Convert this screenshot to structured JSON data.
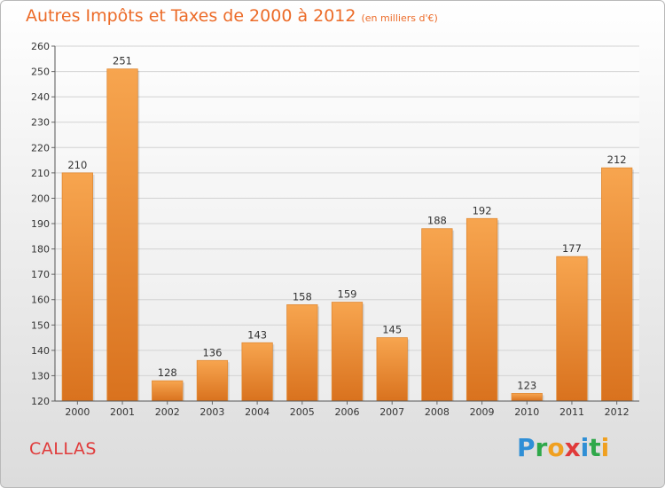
{
  "title": "Autres Impôts et Taxes de 2000 à 2012",
  "subtitle": "(en milliers d'€)",
  "commune": "CALLAS",
  "logo": {
    "text": "Proxiti",
    "letters": [
      "P",
      "r",
      "o",
      "x",
      "i",
      "t",
      "i"
    ]
  },
  "colors": {
    "bar_light": "#f7a54f",
    "bar_dark": "#d9721e",
    "title": "#ec6b28",
    "commune": "#e03a3a"
  },
  "chart_data": {
    "type": "bar",
    "categories": [
      "2000",
      "2001",
      "2002",
      "2003",
      "2004",
      "2005",
      "2006",
      "2007",
      "2008",
      "2009",
      "2010",
      "2011",
      "2012"
    ],
    "values": [
      210,
      251,
      128,
      136,
      143,
      158,
      159,
      145,
      188,
      192,
      123,
      177,
      212
    ],
    "ylim": [
      120,
      260
    ],
    "yticks": [
      120,
      130,
      140,
      150,
      160,
      170,
      180,
      190,
      200,
      210,
      220,
      230,
      240,
      250,
      260
    ],
    "grid": true,
    "xlabel": "",
    "ylabel": ""
  }
}
